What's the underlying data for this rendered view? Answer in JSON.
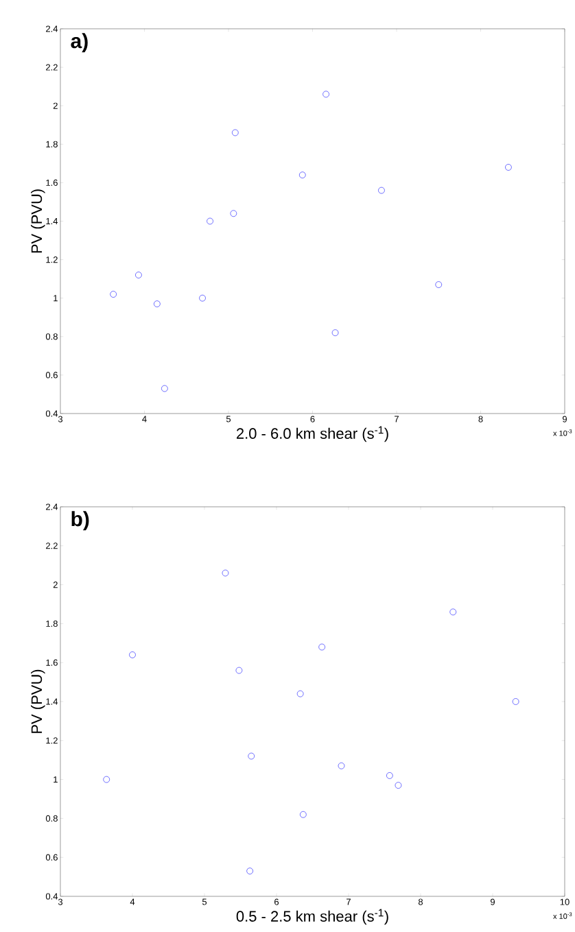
{
  "chart_data": [
    {
      "type": "scatter",
      "xlabel": "2.0 - 6.0 km shear (s$^{-1}$)",
      "ylabel": "PV (PVU)",
      "annotations": [
        "a)",
        "x 10$^{-3}$"
      ],
      "x": [
        3.63,
        3.93,
        4.15,
        4.24,
        4.69,
        4.78,
        5.06,
        5.08,
        5.88,
        6.16,
        6.27,
        6.82,
        7.5,
        8.33
      ],
      "values": [
        1.02,
        1.12,
        0.97,
        0.53,
        1.0,
        1.4,
        1.44,
        1.86,
        1.64,
        2.06,
        0.82,
        1.56,
        1.07,
        1.68
      ],
      "color": "#4b4bff",
      "marker": "circle",
      "grid": false,
      "xlim": [
        3,
        9
      ],
      "xticks": [
        3,
        4,
        5,
        6,
        7,
        8,
        9
      ],
      "ylim": [
        0.4,
        2.4
      ],
      "yticks": [
        0.4,
        0.6,
        0.8,
        1,
        1.2,
        1.4,
        1.6,
        1.8,
        2,
        2.2,
        2.4
      ]
    },
    {
      "type": "scatter",
      "xlabel": "0.5 - 2.5 km shear (s$^{-1}$)",
      "ylabel": "PV (PVU)",
      "annotations": [
        "b)",
        "x 10$^{-3}$"
      ],
      "x": [
        3.64,
        4.0,
        5.29,
        5.48,
        5.63,
        5.65,
        6.33,
        6.37,
        6.63,
        6.9,
        7.57,
        7.69,
        8.45,
        9.32
      ],
      "values": [
        1.0,
        1.64,
        2.06,
        1.56,
        0.53,
        1.12,
        1.44,
        0.82,
        1.68,
        1.07,
        1.02,
        0.97,
        1.86,
        1.4
      ],
      "color": "#4b4bff",
      "marker": "circle",
      "grid": false,
      "xlim": [
        3,
        10
      ],
      "xticks": [
        3,
        4,
        5,
        6,
        7,
        8,
        9,
        10
      ],
      "ylim": [
        0.4,
        2.4
      ],
      "yticks": [
        0.4,
        0.6,
        0.8,
        1,
        1.2,
        1.4,
        1.6,
        1.8,
        2,
        2.2,
        2.4
      ]
    }
  ]
}
